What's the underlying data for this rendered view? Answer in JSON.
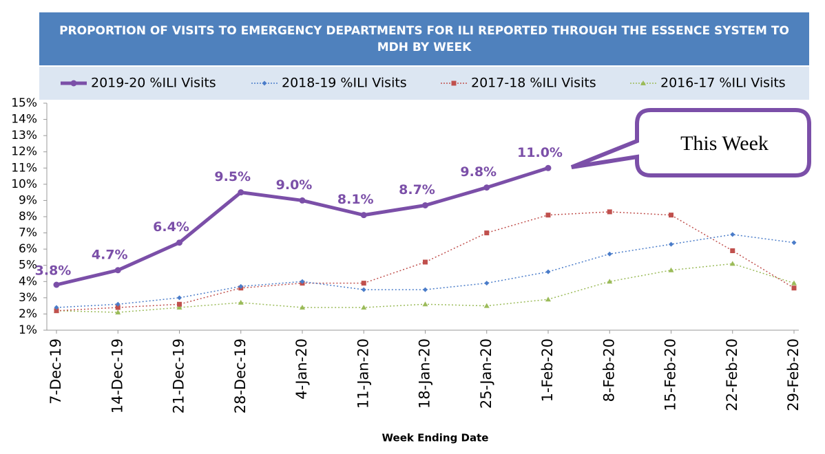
{
  "chart_data": {
    "type": "line",
    "title": "PROPORTION OF VISITS TO EMERGENCY DEPARTMENTS FOR ILI REPORTED THROUGH THE ESSENCE SYSTEM TO MDH BY WEEK",
    "x_label": "Week Ending Date",
    "annotation": "This Week",
    "categories": [
      "7-Dec-19",
      "14-Dec-19",
      "21-Dec-19",
      "28-Dec-19",
      "4-Jan-20",
      "11-Jan-20",
      "18-Jan-20",
      "25-Jan-20",
      "1-Feb-20",
      "8-Feb-20",
      "15-Feb-20",
      "22-Feb-20",
      "29-Feb-20"
    ],
    "series": [
      {
        "name": "2019-20 %ILI Visits",
        "color": "#7b4fa8",
        "values": [
          3.8,
          4.7,
          6.4,
          9.5,
          9.0,
          8.1,
          8.7,
          9.8,
          11.0,
          null,
          null,
          null,
          null
        ],
        "value_labels": [
          "3.8%",
          "4.7%",
          "6.4%",
          "9.5%",
          "9.0%",
          "8.1%",
          "8.7%",
          "9.8%",
          "11.0%",
          null,
          null,
          null,
          null
        ]
      },
      {
        "name": "2018-19 %ILI Visits",
        "color": "#4a7cc9",
        "values": [
          2.4,
          2.6,
          3.0,
          3.7,
          4.0,
          3.5,
          3.5,
          3.9,
          4.6,
          5.7,
          6.3,
          6.9,
          6.4
        ]
      },
      {
        "name": "2017-18 %ILI Visits",
        "color": "#c0504d",
        "values": [
          2.2,
          2.4,
          2.6,
          3.6,
          3.9,
          3.9,
          5.2,
          7.0,
          8.1,
          8.3,
          8.1,
          5.9,
          3.6
        ]
      },
      {
        "name": "2016-17 %ILI Visits",
        "color": "#9bbb59",
        "values": [
          2.2,
          2.1,
          2.4,
          2.7,
          2.4,
          2.4,
          2.6,
          2.5,
          2.9,
          4.0,
          4.7,
          5.1,
          3.9
        ]
      }
    ],
    "ylim": [
      1,
      15
    ],
    "yticks": [
      {
        "value": 1,
        "label": "1%"
      },
      {
        "value": 2,
        "label": "2%"
      },
      {
        "value": 3,
        "label": "3%"
      },
      {
        "value": 4,
        "label": "4%"
      },
      {
        "value": 5,
        "label": "5%"
      },
      {
        "value": 6,
        "label": "6%"
      },
      {
        "value": 7,
        "label": "7%"
      },
      {
        "value": 8,
        "label": "8%"
      },
      {
        "value": 9,
        "label": "9%"
      },
      {
        "value": 10,
        "label": "10%"
      },
      {
        "value": 11,
        "label": "11%"
      },
      {
        "value": 12,
        "label": "12%"
      },
      {
        "value": 13,
        "label": "13%"
      },
      {
        "value": 14,
        "label": "14%"
      },
      {
        "value": 15,
        "label": "15%"
      }
    ]
  }
}
